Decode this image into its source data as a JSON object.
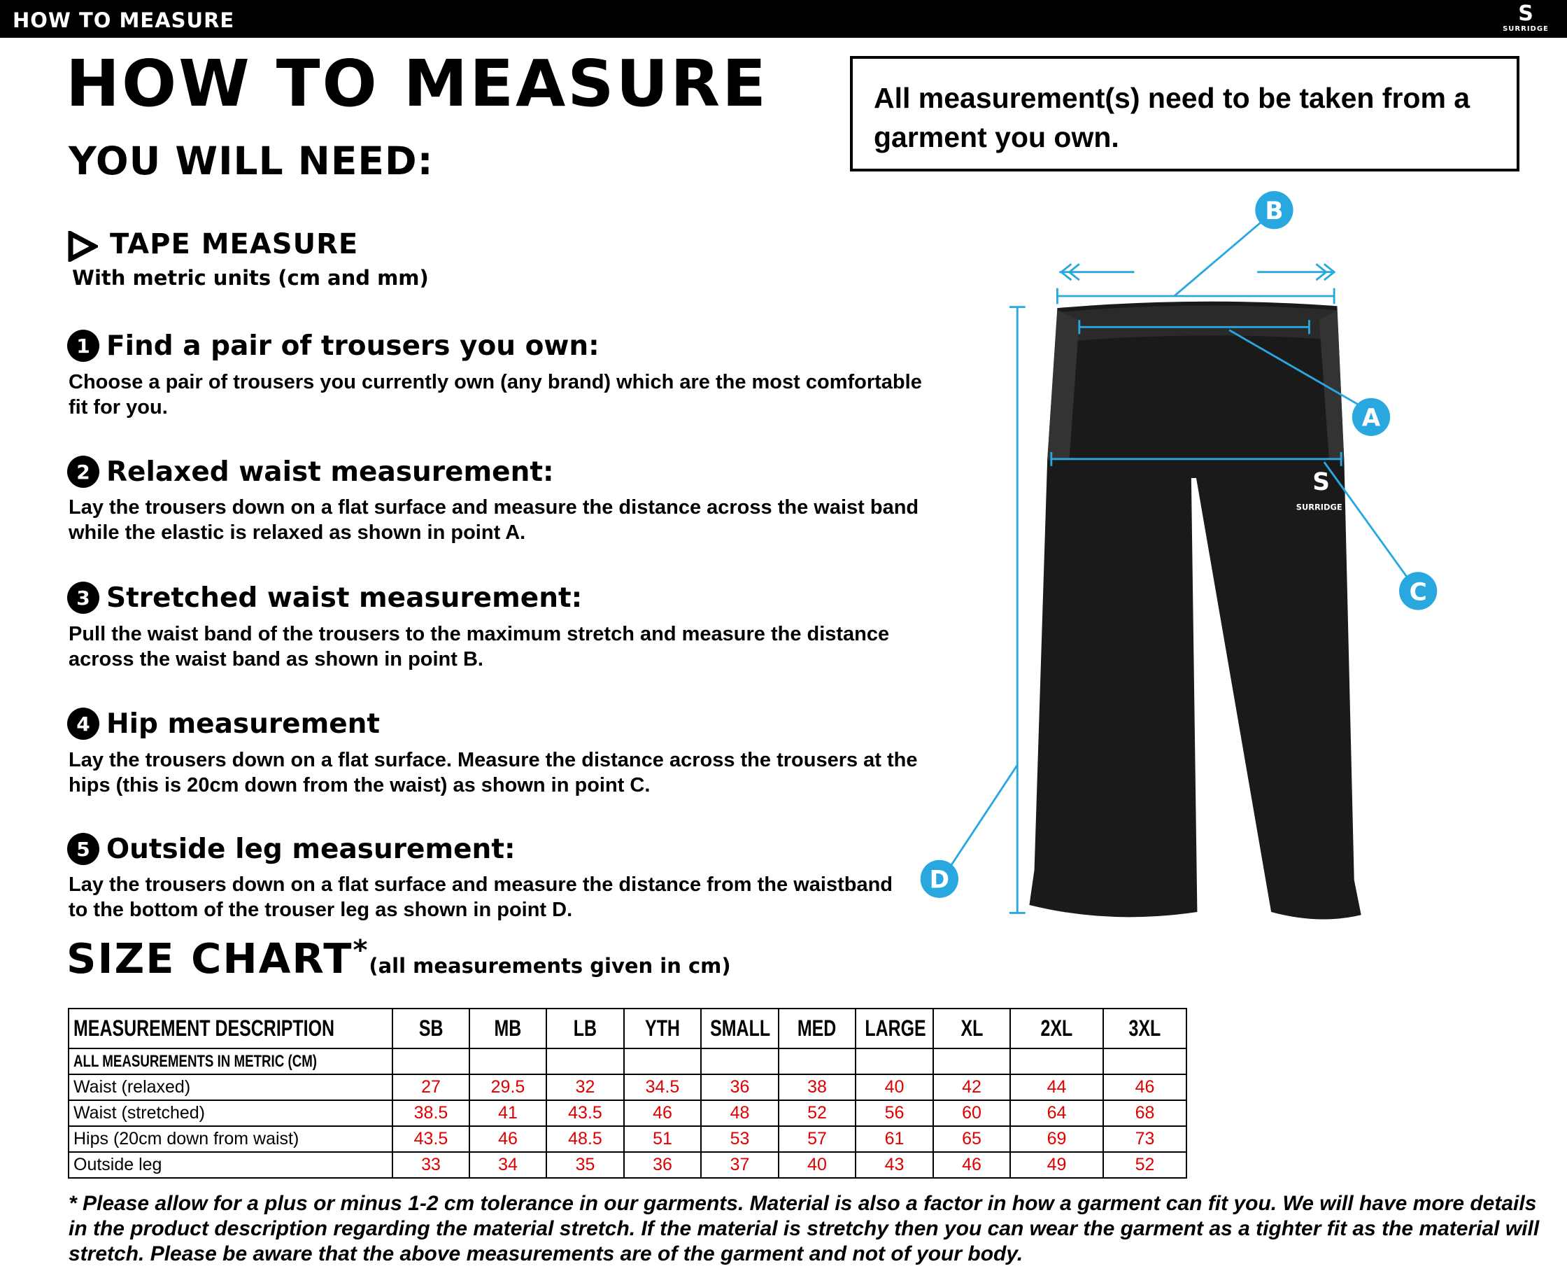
{
  "header": {
    "bar_title": "HOW TO MEASURE",
    "logo_text": "SURRIDGE"
  },
  "title": "HOW TO MEASURE",
  "you_will_need": "YOU WILL NEED:",
  "note": "All measurement(s) need to be taken from a garment you own.",
  "tape": {
    "heading": "TAPE MEASURE",
    "sub": "With metric units (cm and mm)",
    "icon": "play-triangle-icon"
  },
  "steps": [
    {
      "num": "1",
      "heading": "Find a pair of trousers you own:",
      "body": "Choose a pair of trousers you currently own (any brand) which are the most comfortable fit for you."
    },
    {
      "num": "2",
      "heading": "Relaxed waist measurement:",
      "body": "Lay the trousers down on a flat surface and measure the distance across the waist band while the elastic is relaxed as shown in point A."
    },
    {
      "num": "3",
      "heading": "Stretched waist measurement:",
      "body": "Pull the waist band of the trousers to the maximum stretch and measure the distance across the waist band as shown in point B."
    },
    {
      "num": "4",
      "heading": "Hip measurement",
      "body": "Lay the trousers down on a flat surface. Measure the distance across the trousers at the hips (this is 20cm down from the waist)  as shown in point C."
    },
    {
      "num": "5",
      "heading": "Outside leg measurement:",
      "body": "Lay the trousers down on a flat surface and measure the distance from the waistband to the bottom of the trouser  leg as shown in point D."
    }
  ],
  "diagram": {
    "points": [
      "A",
      "B",
      "C",
      "D"
    ],
    "garment_logo": "SURRIDGE",
    "accent": "#29a8e0"
  },
  "size_chart": {
    "title": "SIZE CHART",
    "star": "*",
    "subtitle": "(all measurements given in cm)",
    "columns": [
      "MEASUREMENT DESCRIPTION",
      "SB",
      "MB",
      "LB",
      "YTH",
      "SMALL",
      "MED",
      "LARGE",
      "XL",
      "2XL",
      "3XL"
    ],
    "metric_label": "ALL MEASUREMENTS IN METRIC (CM)",
    "rows": [
      {
        "label": "Waist (relaxed)",
        "values": [
          "27",
          "29.5",
          "32",
          "34.5",
          "36",
          "38",
          "40",
          "42",
          "44",
          "46"
        ]
      },
      {
        "label": "Waist (stretched)",
        "values": [
          "38.5",
          "41",
          "43.5",
          "46",
          "48",
          "52",
          "56",
          "60",
          "64",
          "68"
        ]
      },
      {
        "label": "Hips (20cm down from waist)",
        "values": [
          "43.5",
          "46",
          "48.5",
          "51",
          "53",
          "57",
          "61",
          "65",
          "69",
          "73"
        ]
      },
      {
        "label": "Outside leg",
        "values": [
          "33",
          "34",
          "35",
          "36",
          "37",
          "40",
          "43",
          "46",
          "49",
          "52"
        ]
      }
    ],
    "value_color": "#e00000"
  },
  "footnote": "* Please allow for a plus or minus 1-2 cm tolerance in our garments. Material is also a factor in how a garment can fit you. We will have more details in the product description regarding the material stretch.  If the material is stretchy then you can wear the garment as a tighter fit as the material will stretch.  Please be aware that the above measurements are of the garment and not of your body."
}
